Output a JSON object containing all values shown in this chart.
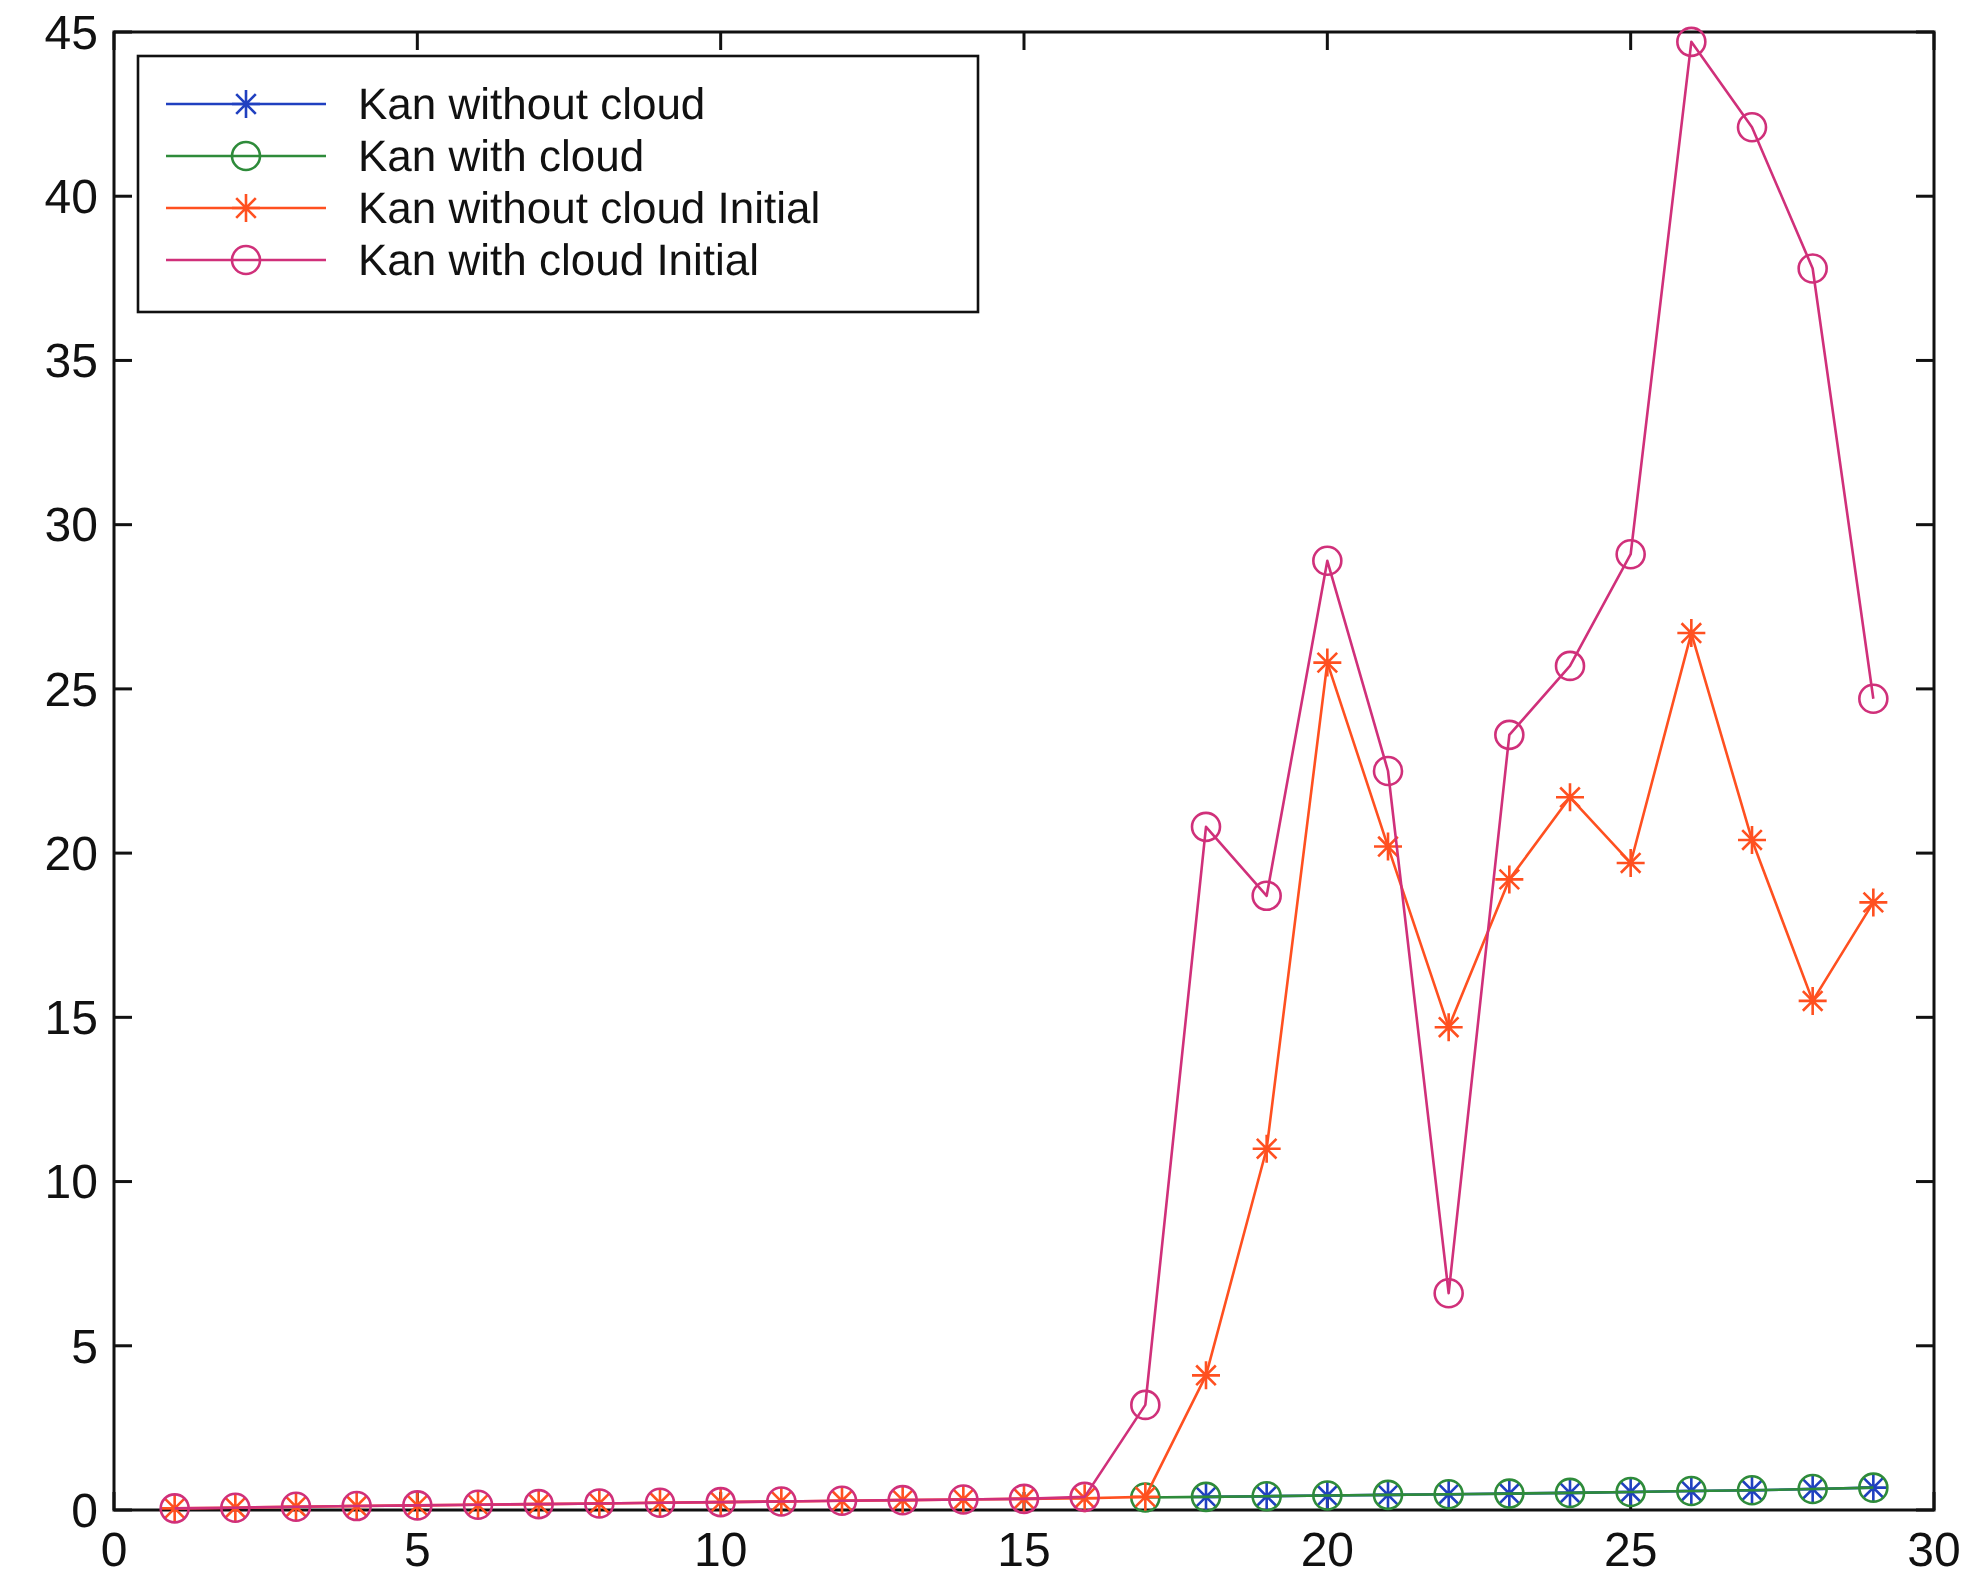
{
  "chart_data": {
    "type": "line",
    "x": [
      1,
      2,
      3,
      4,
      5,
      6,
      7,
      8,
      9,
      10,
      11,
      12,
      13,
      14,
      15,
      16,
      17,
      18,
      19,
      20,
      21,
      22,
      23,
      24,
      25,
      26,
      27,
      28,
      29
    ],
    "series": [
      {
        "name": "Kan without cloud",
        "color": "#2040c0",
        "marker": "cross",
        "values": [
          null,
          null,
          null,
          null,
          null,
          null,
          null,
          null,
          null,
          null,
          null,
          null,
          null,
          null,
          null,
          null,
          null,
          0.4,
          0.42,
          0.44,
          0.46,
          0.48,
          0.5,
          0.52,
          0.55,
          0.58,
          0.6,
          0.64,
          0.68
        ]
      },
      {
        "name": "Kan with cloud",
        "color": "#2e8b3a",
        "marker": "circle",
        "values": [
          null,
          null,
          null,
          null,
          null,
          null,
          null,
          null,
          null,
          null,
          null,
          null,
          null,
          null,
          null,
          null,
          0.38,
          0.4,
          0.42,
          0.44,
          0.46,
          0.48,
          0.5,
          0.52,
          0.55,
          0.58,
          0.6,
          0.64,
          0.68
        ]
      },
      {
        "name": "Kan without cloud Initial",
        "color": "#ff5020",
        "marker": "cross",
        "values": [
          0.05,
          0.07,
          0.1,
          0.12,
          0.14,
          0.16,
          0.18,
          0.2,
          0.22,
          0.24,
          0.26,
          0.28,
          0.3,
          0.32,
          0.34,
          0.36,
          0.4,
          4.1,
          11,
          25.8,
          20.2,
          14.7,
          19.2,
          21.7,
          19.7,
          26.7,
          20.4,
          15.5,
          18.5
        ]
      },
      {
        "name": "Kan with cloud Initial",
        "color": "#d0307a",
        "marker": "circle",
        "values": [
          0.05,
          0.07,
          0.1,
          0.12,
          0.14,
          0.16,
          0.18,
          0.2,
          0.22,
          0.24,
          0.26,
          0.28,
          0.3,
          0.32,
          0.34,
          0.4,
          3.2,
          20.8,
          18.7,
          28.9,
          22.5,
          6.6,
          23.6,
          25.7,
          29.1,
          44.7,
          42.1,
          37.8,
          24.7
        ]
      }
    ],
    "xlim": [
      0,
      30
    ],
    "xticks": [
      0,
      5,
      10,
      15,
      20,
      25,
      30
    ],
    "ylim": [
      0,
      45
    ],
    "yticks": [
      0,
      5,
      10,
      15,
      20,
      25,
      30,
      35,
      40,
      45
    ],
    "grid": false,
    "legend": "top left",
    "line_style": "solid"
  }
}
